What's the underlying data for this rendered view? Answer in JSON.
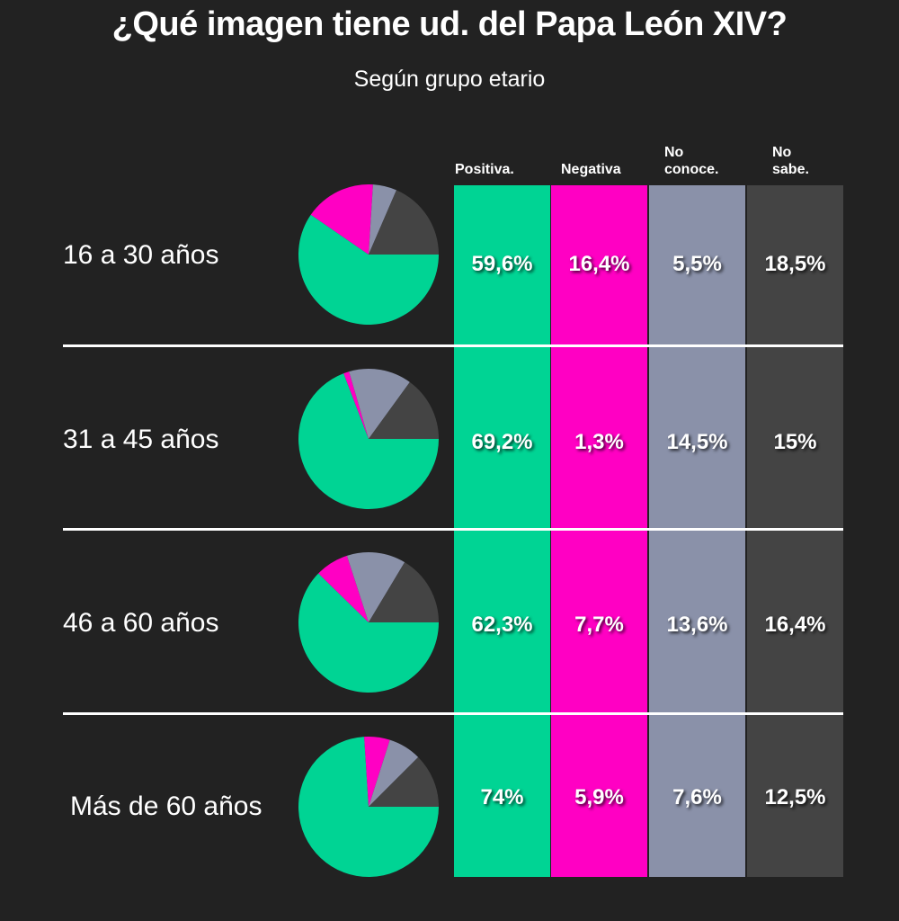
{
  "title": "¿Qué imagen tiene ud. del Papa León XIV?",
  "subtitle": "Según grupo etario",
  "colors": {
    "positiva": "#00d494",
    "negativa": "#ff00c3",
    "no_conoce": "#8a91a9",
    "no_sabe": "#444444"
  },
  "columns": [
    {
      "line1": "Positiva.",
      "line2": ""
    },
    {
      "line1": "Negativa",
      "line2": ""
    },
    {
      "line1": "No",
      "line2": "conoce."
    },
    {
      "line1": "No",
      "line2": "sabe."
    }
  ],
  "rows": [
    {
      "label": "16 a 30 años",
      "values_text": [
        "59,6%",
        "16,4%",
        "5,5%",
        "18,5%"
      ]
    },
    {
      "label": "31 a 45 años",
      "values_text": [
        "69,2%",
        "1,3%",
        "14,5%",
        "15%"
      ]
    },
    {
      "label": "46 a 60 años",
      "values_text": [
        "62,3%",
        "7,7%",
        "13,6%",
        "16,4%"
      ]
    },
    {
      "label": "Más de 60 años",
      "values_text": [
        "74%",
        "5,9%",
        "7,6%",
        "12,5%"
      ]
    }
  ],
  "chart_data": {
    "type": "pie",
    "title": "¿Qué imagen tiene ud. del Papa León XIV?",
    "subtitle": "Según grupo etario",
    "categories": [
      "Positiva.",
      "Negativa",
      "No conoce.",
      "No sabe."
    ],
    "groups": [
      {
        "label": "16 a 30 años",
        "values": [
          59.6,
          16.4,
          5.5,
          18.5
        ]
      },
      {
        "label": "31 a 45 años",
        "values": [
          69.2,
          1.3,
          14.5,
          15
        ]
      },
      {
        "label": "46 a 60 años",
        "values": [
          62.3,
          7.7,
          13.6,
          16.4
        ]
      },
      {
        "label": "Más de 60 años",
        "values": [
          74,
          5.9,
          7.6,
          12.5
        ]
      }
    ],
    "unit": "%",
    "legend": "column headers top"
  }
}
